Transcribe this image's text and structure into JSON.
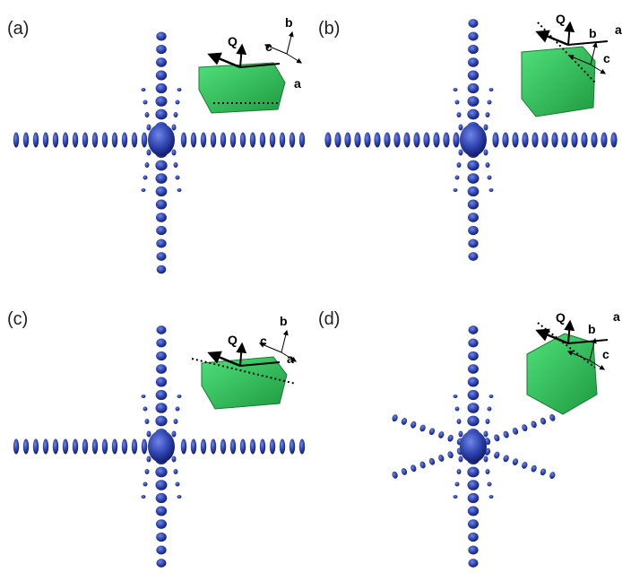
{
  "panels": [
    {
      "label": "(a)",
      "vector_label": "Q",
      "axis_labels": [
        "a",
        "b",
        "c"
      ]
    },
    {
      "label": "(b)",
      "vector_label": "Q",
      "axis_labels": [
        "a",
        "b",
        "c"
      ]
    },
    {
      "label": "(c)",
      "vector_label": "Q",
      "axis_labels": [
        "a",
        "b",
        "c"
      ]
    },
    {
      "label": "(d)",
      "vector_label": "Q",
      "axis_labels": [
        "a",
        "b",
        "c"
      ]
    }
  ]
}
